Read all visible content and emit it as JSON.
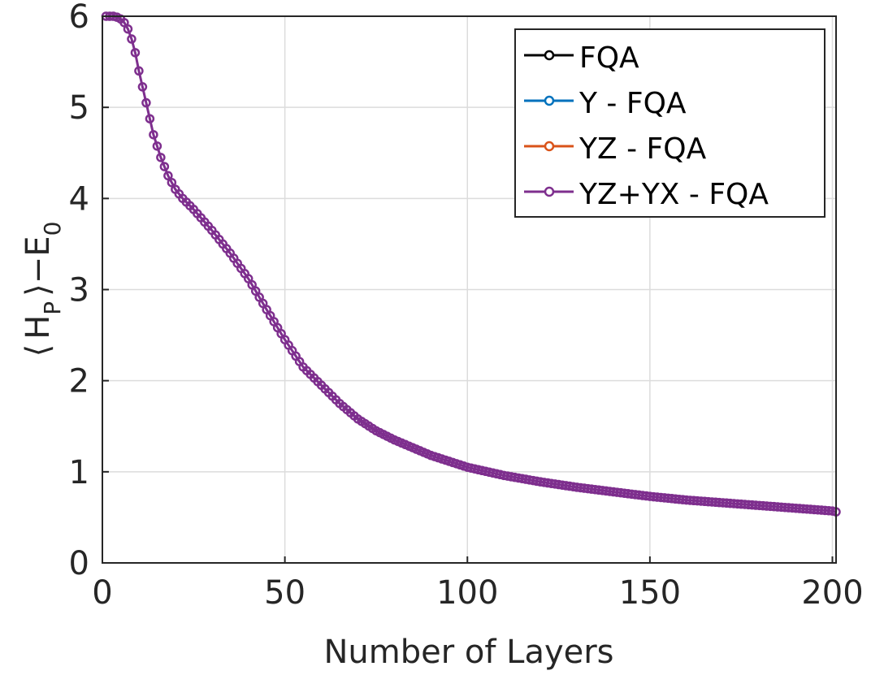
{
  "chart_data": {
    "type": "line",
    "xlabel": "Number of Layers",
    "ylabel": "⟨ H_P ⟩−E_0",
    "ylabel_parts": {
      "bracket_open": "⟨",
      "h": "H",
      "h_sub": "P",
      "bracket_close": "⟩",
      "minus": "−",
      "e": "E",
      "e_sub": "0"
    },
    "xlim": [
      0,
      201
    ],
    "ylim": [
      0,
      6
    ],
    "x_ticks": [
      0,
      50,
      100,
      150,
      200
    ],
    "y_ticks": [
      0,
      1,
      2,
      3,
      4,
      5,
      6
    ],
    "grid": true,
    "legend_position": "top-right",
    "curve_points": [
      [
        1,
        6.0
      ],
      [
        2,
        6.0
      ],
      [
        3,
        6.0
      ],
      [
        4,
        5.99
      ],
      [
        5,
        5.97
      ],
      [
        6,
        5.93
      ],
      [
        7,
        5.86
      ],
      [
        8,
        5.75
      ],
      [
        9,
        5.6
      ],
      [
        10,
        5.4
      ],
      [
        12,
        5.05
      ],
      [
        14,
        4.7
      ],
      [
        16,
        4.45
      ],
      [
        18,
        4.25
      ],
      [
        20,
        4.1
      ],
      [
        22,
        4.0
      ],
      [
        25,
        3.88
      ],
      [
        30,
        3.65
      ],
      [
        35,
        3.4
      ],
      [
        40,
        3.12
      ],
      [
        45,
        2.78
      ],
      [
        50,
        2.45
      ],
      [
        55,
        2.15
      ],
      [
        60,
        1.95
      ],
      [
        65,
        1.75
      ],
      [
        70,
        1.58
      ],
      [
        75,
        1.45
      ],
      [
        80,
        1.35
      ],
      [
        90,
        1.18
      ],
      [
        100,
        1.05
      ],
      [
        110,
        0.96
      ],
      [
        120,
        0.89
      ],
      [
        130,
        0.83
      ],
      [
        140,
        0.78
      ],
      [
        150,
        0.73
      ],
      [
        160,
        0.69
      ],
      [
        170,
        0.66
      ],
      [
        180,
        0.63
      ],
      [
        190,
        0.6
      ],
      [
        200,
        0.57
      ],
      [
        201,
        0.56
      ]
    ],
    "series": [
      {
        "name": "FQA",
        "color": "#000000"
      },
      {
        "name": "Y - FQA",
        "color": "#0072BD"
      },
      {
        "name": "YZ - FQA",
        "color": "#D95319"
      },
      {
        "name": "YZ+YX - FQA",
        "color": "#7E2F8E"
      }
    ],
    "plotted_series_index": 3
  },
  "legend": {
    "items": [
      "FQA",
      "Y - FQA",
      "YZ - FQA",
      "YZ+YX - FQA"
    ]
  }
}
